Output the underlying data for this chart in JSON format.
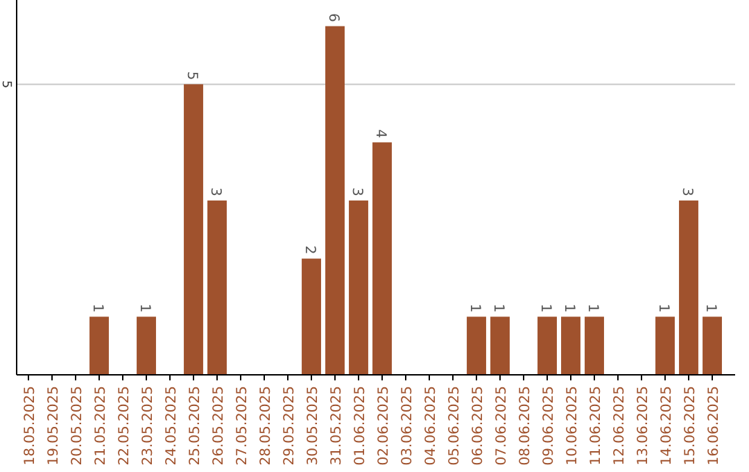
{
  "chart_data": {
    "type": "bar",
    "categories": [
      "18.05.2025",
      "19.05.2025",
      "20.05.2025",
      "21.05.2025",
      "22.05.2025",
      "23.05.2025",
      "24.05.2025",
      "25.05.2025",
      "26.05.2025",
      "27.05.2025",
      "28.05.2025",
      "29.05.2025",
      "30.05.2025",
      "31.05.2025",
      "01.06.2025",
      "02.06.2025",
      "03.06.2025",
      "04.06.2025",
      "05.06.2025",
      "06.06.2025",
      "07.06.2025",
      "08.06.2025",
      "09.06.2025",
      "10.06.2025",
      "11.06.2025",
      "12.06.2025",
      "13.06.2025",
      "14.06.2025",
      "15.06.2025",
      "16.06.2025"
    ],
    "values": [
      0,
      0,
      0,
      1,
      0,
      1,
      0,
      5,
      3,
      0,
      0,
      0,
      2,
      6,
      3,
      4,
      0,
      0,
      0,
      1,
      1,
      0,
      1,
      1,
      1,
      0,
      0,
      1,
      3,
      1
    ],
    "color": "#a0522d",
    "value_labels": [
      null,
      null,
      null,
      "1",
      null,
      "1",
      null,
      "5",
      "3",
      null,
      null,
      null,
      "2",
      "6",
      "3",
      "4",
      null,
      null,
      null,
      "1",
      "1",
      null,
      "1",
      "1",
      "1",
      null,
      null,
      "1",
      "3",
      "1"
    ],
    "ylim": [
      0,
      6.45
    ],
    "yticks": [
      5
    ],
    "grid": "y"
  }
}
